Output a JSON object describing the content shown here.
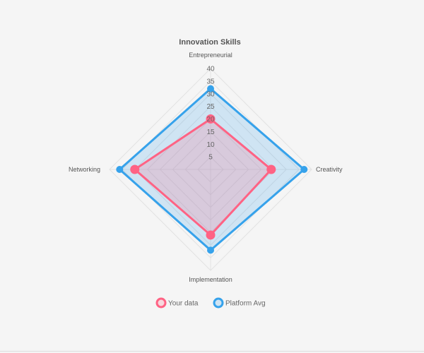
{
  "chart_data": {
    "type": "radar",
    "title": "Innovation Skills",
    "axes": [
      "Entrepreneurial",
      "Creativity",
      "Implementation",
      "Networking"
    ],
    "r_ticks": [
      5,
      10,
      15,
      20,
      25,
      30,
      35,
      40
    ],
    "r_range": [
      0,
      40
    ],
    "grid": true,
    "legend": {
      "position": "bottom"
    },
    "series": [
      {
        "name": "Platform Avg",
        "values": [
          32,
          37,
          32,
          36
        ],
        "color": "#36a2eb",
        "fill": "rgba(54,162,235,0.2)"
      },
      {
        "name": "Your data",
        "values": [
          20,
          24,
          26,
          30
        ],
        "color": "#ff6384",
        "fill": "rgba(255,99,132,0.2)"
      }
    ]
  }
}
